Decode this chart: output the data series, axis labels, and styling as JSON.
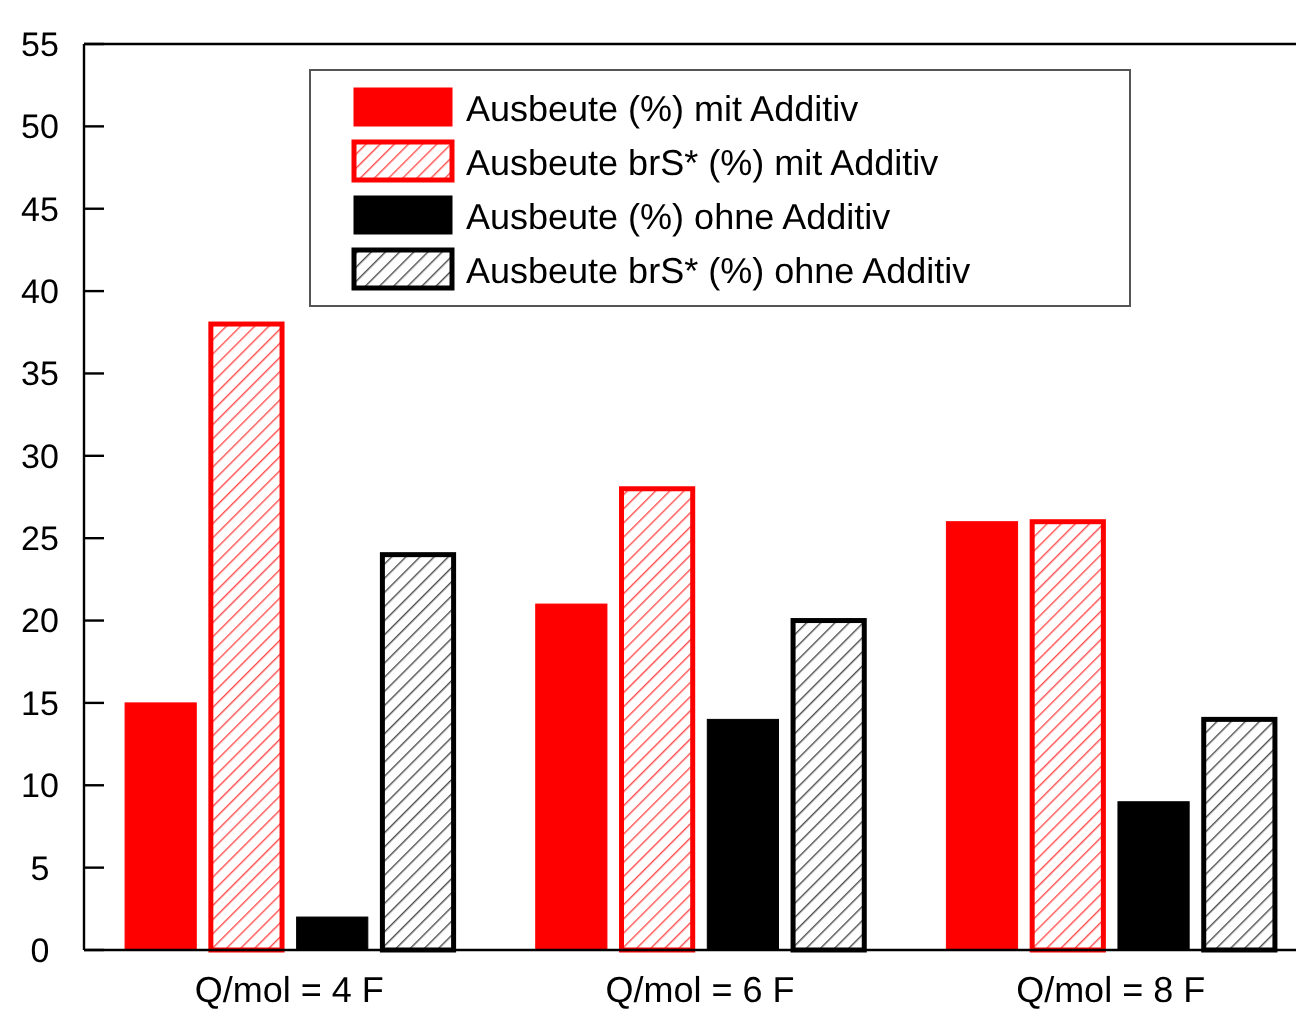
{
  "chart_data": {
    "type": "bar",
    "categories": [
      "Q/mol = 4 F",
      "Q/mol = 6 F",
      "Q/mol = 8 F"
    ],
    "series": [
      {
        "name": "Ausbeute (%) mit Additiv",
        "color": "#ff0000",
        "values": [
          15,
          21,
          26
        ]
      },
      {
        "name": "Ausbeute brS* (%) mit Additiv",
        "color": "#ff0000",
        "values": [
          38,
          28,
          26
        ]
      },
      {
        "name": "Ausbeute (%) ohne Additiv",
        "color": "#000000",
        "values": [
          2,
          14,
          9
        ]
      },
      {
        "name": "Ausbeute brS* (%) ohne Additiv",
        "color": "#000000",
        "values": [
          24,
          20,
          14
        ]
      }
    ],
    "ylim": [
      0,
      55
    ],
    "yticks": [
      0,
      5,
      10,
      15,
      20,
      25,
      30,
      35,
      40,
      45,
      50,
      55
    ],
    "legend": "top",
    "grid": false
  }
}
